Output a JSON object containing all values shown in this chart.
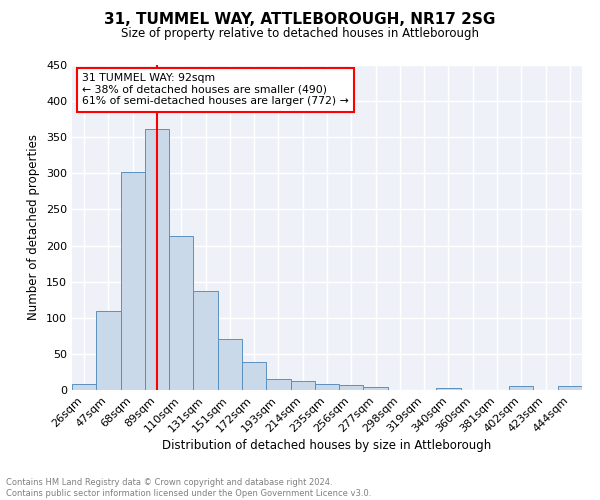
{
  "title_line1": "31, TUMMEL WAY, ATTLEBOROUGH, NR17 2SG",
  "title_line2": "Size of property relative to detached houses in Attleborough",
  "xlabel": "Distribution of detached houses by size in Attleborough",
  "ylabel": "Number of detached properties",
  "bar_labels": [
    "26sqm",
    "47sqm",
    "68sqm",
    "89sqm",
    "110sqm",
    "131sqm",
    "151sqm",
    "172sqm",
    "193sqm",
    "214sqm",
    "235sqm",
    "256sqm",
    "277sqm",
    "298sqm",
    "319sqm",
    "340sqm",
    "360sqm",
    "381sqm",
    "402sqm",
    "423sqm",
    "444sqm"
  ],
  "bar_values": [
    8,
    109,
    302,
    362,
    213,
    137,
    71,
    39,
    15,
    12,
    9,
    7,
    4,
    0,
    0,
    3,
    0,
    0,
    5,
    0,
    5
  ],
  "bar_color": "#c9d9ea",
  "bar_edge_color": "#5a90c0",
  "ylim": [
    0,
    450
  ],
  "yticks": [
    0,
    50,
    100,
    150,
    200,
    250,
    300,
    350,
    400,
    450
  ],
  "red_line_x": 3.5,
  "annotation_text": "31 TUMMEL WAY: 92sqm\n← 38% of detached houses are smaller (490)\n61% of semi-detached houses are larger (772) →",
  "annotation_box_color": "white",
  "annotation_box_edge_color": "red",
  "footer_text": "Contains HM Land Registry data © Crown copyright and database right 2024.\nContains public sector information licensed under the Open Government Licence v3.0.",
  "background_color": "#eef2f8",
  "grid_color": "white"
}
